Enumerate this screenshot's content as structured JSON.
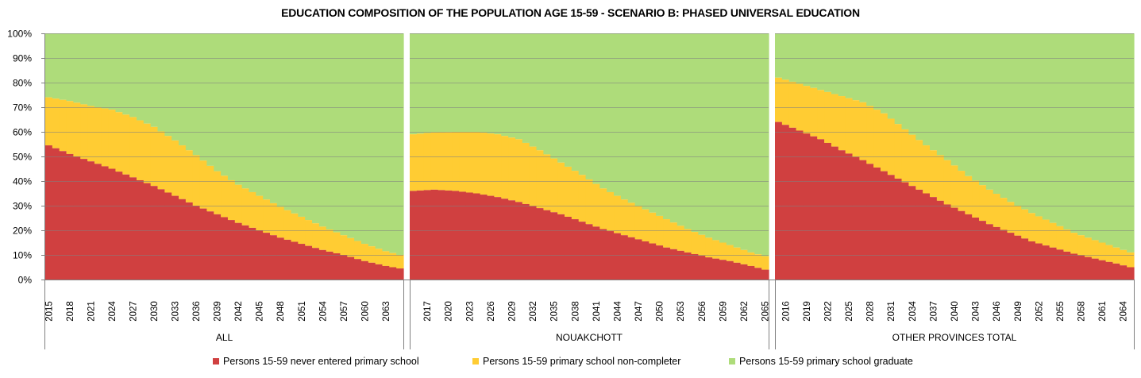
{
  "chart_data": {
    "type": "bar",
    "stacked": "percent",
    "title": "EDUCATION COMPOSITION OF THE POPULATION AGE 15-59  - SCENARIO B: PHASED UNIVERSAL EDUCATION",
    "xlabel": "",
    "ylabel": "",
    "ylim": [
      0,
      100
    ],
    "yticks": [
      "0%",
      "10%",
      "20%",
      "30%",
      "40%",
      "50%",
      "60%",
      "70%",
      "80%",
      "90%",
      "100%"
    ],
    "grid": true,
    "legend_position": "bottom",
    "series_names": [
      "Persons 15-59 never entered primary school",
      "Persons 15-59 primary school non-completer",
      "Persons 15-59 primary school graduate"
    ],
    "series_colors": [
      "#d04040",
      "#ffcc33",
      "#aedc7a"
    ],
    "panels": [
      {
        "group": "ALL",
        "start_year": 2015,
        "end_year": 2065,
        "tick_labels": [
          "2015",
          "2018",
          "2021",
          "2024",
          "2027",
          "2030",
          "2033",
          "2036",
          "2039",
          "2042",
          "2045",
          "2048",
          "2051",
          "2054",
          "2057",
          "2060",
          "2063"
        ],
        "tick_start_index": 0,
        "anchors": {
          "years": [
            2015,
            2018,
            2021,
            2024,
            2027,
            2030,
            2033,
            2036,
            2039,
            2042,
            2045,
            2048,
            2051,
            2054,
            2057,
            2060,
            2063,
            2065
          ],
          "never_entered": [
            54.5,
            51,
            48,
            45,
            41.5,
            38,
            34,
            30,
            26.5,
            23,
            20,
            17,
            14.5,
            12,
            10,
            7.5,
            5.5,
            4.5
          ],
          "cumulative_noncompleter": [
            74,
            72.5,
            70.5,
            69,
            66,
            62,
            56.5,
            50.5,
            44,
            38.5,
            34,
            29.5,
            25.5,
            21.5,
            18,
            14.5,
            11.5,
            10
          ]
        }
      },
      {
        "group": "NOUAKCHOTT",
        "start_year": 2015,
        "end_year": 2065,
        "tick_labels": [
          "2017",
          "2020",
          "2023",
          "2026",
          "2029",
          "2032",
          "2035",
          "2038",
          "2041",
          "2044",
          "2047",
          "2050",
          "2053",
          "2056",
          "2059",
          "2062",
          "2065"
        ],
        "tick_start_index": 2,
        "anchors": {
          "years": [
            2015,
            2018,
            2021,
            2024,
            2027,
            2030,
            2033,
            2036,
            2039,
            2042,
            2045,
            2048,
            2051,
            2054,
            2057,
            2060,
            2063,
            2065
          ],
          "never_entered": [
            36,
            36.5,
            36,
            35,
            33.5,
            31.5,
            29,
            26.5,
            23.5,
            20.5,
            18,
            15.5,
            13,
            11,
            9,
            7.5,
            5.5,
            4
          ],
          "cumulative_noncompleter": [
            59,
            59.8,
            60,
            60,
            59,
            57,
            52.5,
            47.5,
            42.5,
            37,
            32.5,
            28.5,
            24.5,
            20.5,
            17,
            14,
            11,
            9.5
          ]
        }
      },
      {
        "group": "OTHER PROVINCES TOTAL",
        "start_year": 2015,
        "end_year": 2065,
        "tick_labels": [
          "2016",
          "2019",
          "2022",
          "2025",
          "2028",
          "2031",
          "2034",
          "2037",
          "2040",
          "2043",
          "2046",
          "2049",
          "2052",
          "2055",
          "2058",
          "2061",
          "2064"
        ],
        "tick_start_index": 1,
        "anchors": {
          "years": [
            2015,
            2018,
            2021,
            2024,
            2027,
            2030,
            2033,
            2036,
            2039,
            2042,
            2045,
            2048,
            2051,
            2054,
            2057,
            2060,
            2063,
            2065
          ],
          "never_entered": [
            64,
            60.5,
            57,
            52.5,
            48.5,
            44,
            39.5,
            35,
            30.5,
            26.5,
            22.5,
            19,
            15.5,
            13,
            10.5,
            8.5,
            6.5,
            5
          ],
          "cumulative_noncompleter": [
            82,
            79.5,
            77,
            74.5,
            72,
            67.5,
            61,
            54.5,
            48.5,
            42,
            36.5,
            31.5,
            27,
            23,
            19,
            16,
            13,
            11
          ]
        }
      }
    ]
  },
  "legend": {
    "items": [
      {
        "label": "Persons 15-59 never entered primary school",
        "color": "#d04040"
      },
      {
        "label": "Persons 15-59 primary school non-completer",
        "color": "#ffcc33"
      },
      {
        "label": "Persons 15-59 primary school graduate",
        "color": "#aedc7a"
      }
    ]
  }
}
